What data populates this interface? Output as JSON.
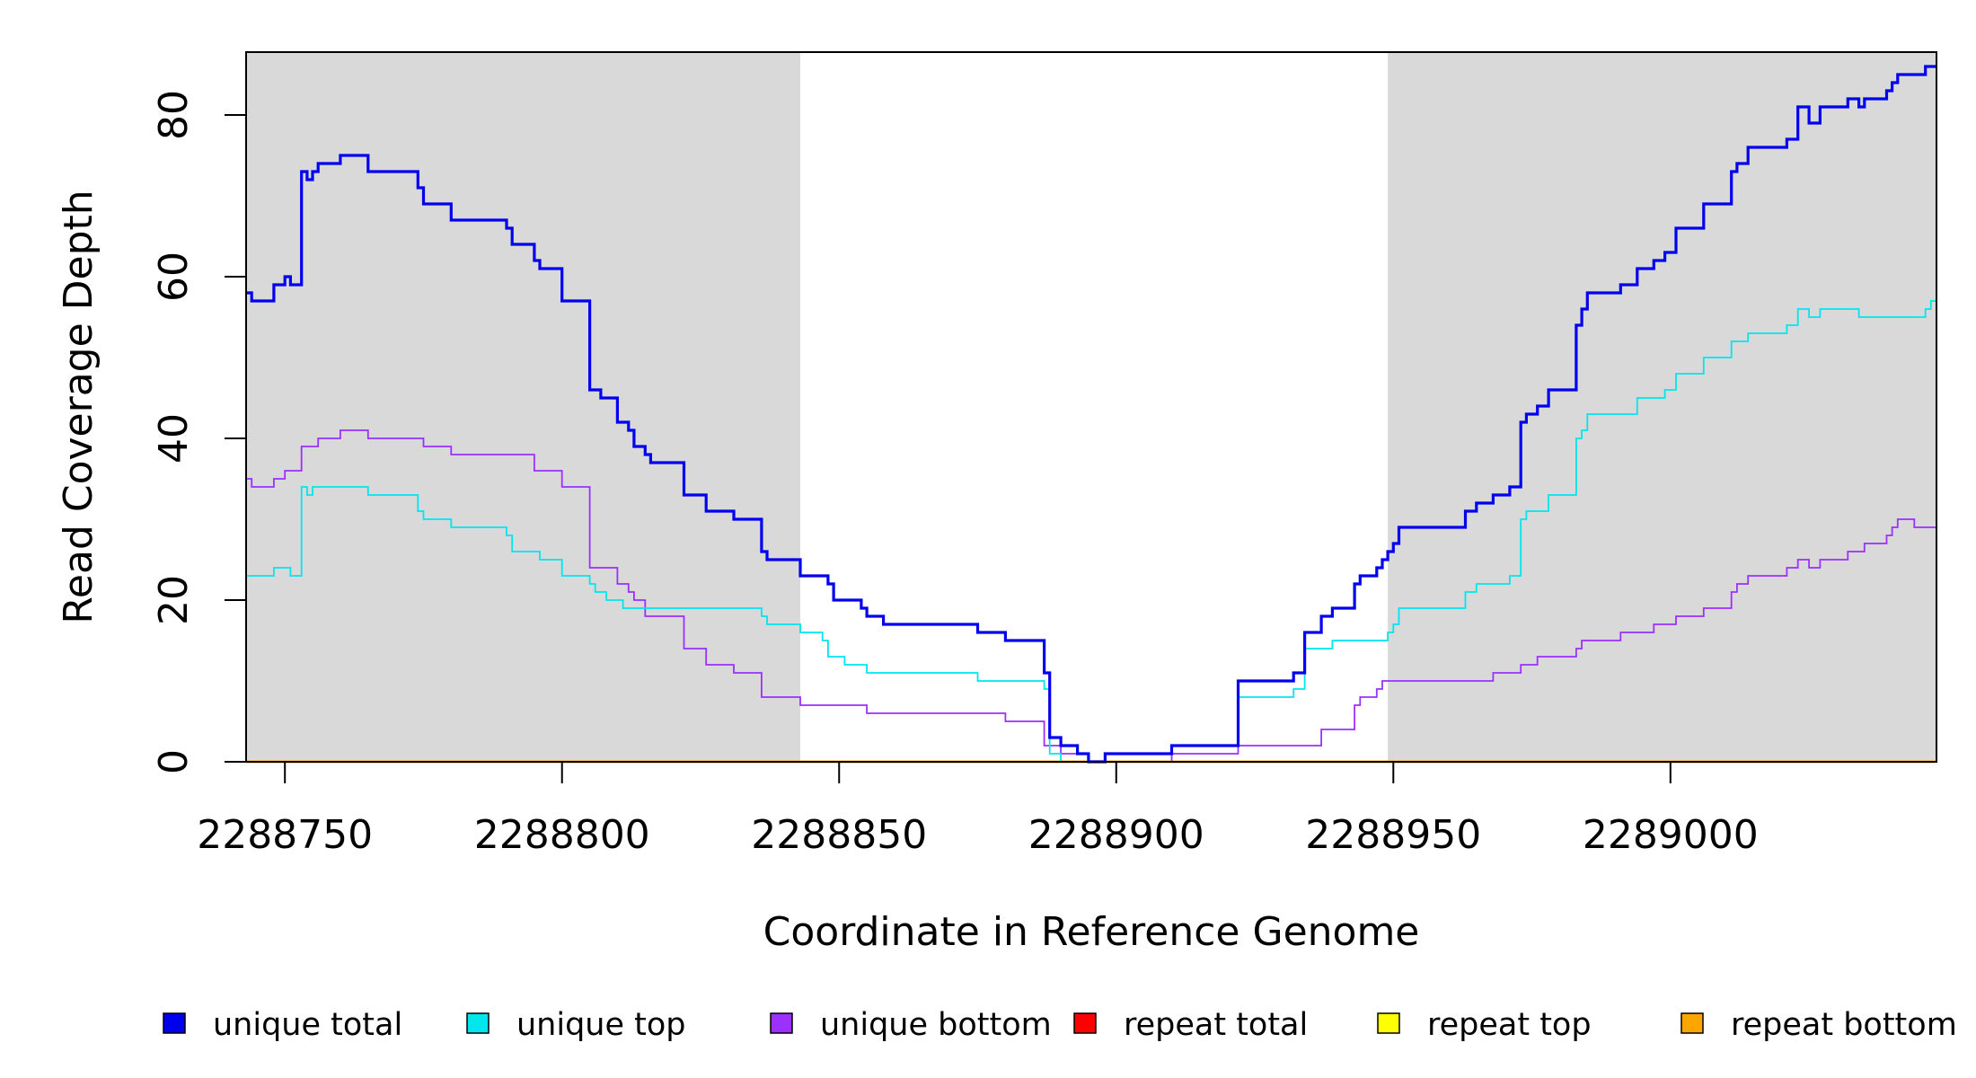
{
  "chart_data": {
    "type": "line",
    "title": "",
    "xlabel": "Coordinate in Reference Genome",
    "ylabel": "Read Coverage Depth",
    "xlim": [
      2288743,
      2289048
    ],
    "ylim": [
      0,
      91
    ],
    "x_ticks": [
      2288750,
      2288800,
      2288850,
      2288900,
      2288950,
      2289000
    ],
    "x_tick_labels": [
      "2288750",
      "2288800",
      "2288850",
      "2288900",
      "2288950",
      "2289000"
    ],
    "y_ticks": [
      0,
      20,
      40,
      60,
      80
    ],
    "y_tick_labels": [
      "0",
      "20",
      "40",
      "60",
      "80"
    ],
    "shaded_regions": [
      [
        2288743,
        2288843
      ],
      [
        2288949,
        2289048
      ]
    ],
    "shade_color": "#d9d9d9",
    "grid": false,
    "legend_position": "bottom",
    "series": [
      {
        "name": "unique total",
        "color": "#0000ee",
        "points": [
          [
            2288743,
            58
          ],
          [
            2288744,
            57
          ],
          [
            2288748,
            59
          ],
          [
            2288750,
            60
          ],
          [
            2288751,
            59
          ],
          [
            2288753,
            73
          ],
          [
            2288754,
            72
          ],
          [
            2288755,
            73
          ],
          [
            2288756,
            74
          ],
          [
            2288760,
            75
          ],
          [
            2288765,
            73
          ],
          [
            2288774,
            71
          ],
          [
            2288775,
            69
          ],
          [
            2288780,
            67
          ],
          [
            2288790,
            66
          ],
          [
            2288791,
            64
          ],
          [
            2288795,
            62
          ],
          [
            2288796,
            61
          ],
          [
            2288800,
            57
          ],
          [
            2288805,
            46
          ],
          [
            2288807,
            45
          ],
          [
            2288810,
            42
          ],
          [
            2288812,
            41
          ],
          [
            2288813,
            39
          ],
          [
            2288815,
            38
          ],
          [
            2288816,
            37
          ],
          [
            2288822,
            33
          ],
          [
            2288826,
            31
          ],
          [
            2288831,
            30
          ],
          [
            2288836,
            26
          ],
          [
            2288837,
            25
          ],
          [
            2288843,
            23
          ],
          [
            2288848,
            22
          ],
          [
            2288849,
            20
          ],
          [
            2288854,
            19
          ],
          [
            2288855,
            18
          ],
          [
            2288858,
            17
          ],
          [
            2288875,
            16
          ],
          [
            2288880,
            15
          ],
          [
            2288887,
            11
          ],
          [
            2288888,
            3
          ],
          [
            2288890,
            2
          ],
          [
            2288893,
            1
          ],
          [
            2288895,
            0
          ],
          [
            2288898,
            1
          ],
          [
            2288910,
            2
          ],
          [
            2288922,
            10
          ],
          [
            2288932,
            11
          ],
          [
            2288934,
            16
          ],
          [
            2288937,
            18
          ],
          [
            2288939,
            19
          ],
          [
            2288943,
            22
          ],
          [
            2288944,
            23
          ],
          [
            2288947,
            24
          ],
          [
            2288948,
            25
          ],
          [
            2288949,
            26
          ],
          [
            2288950,
            27
          ],
          [
            2288951,
            29
          ],
          [
            2288963,
            31
          ],
          [
            2288965,
            32
          ],
          [
            2288968,
            33
          ],
          [
            2288971,
            34
          ],
          [
            2288973,
            42
          ],
          [
            2288974,
            43
          ],
          [
            2288976,
            44
          ],
          [
            2288978,
            46
          ],
          [
            2288983,
            54
          ],
          [
            2288984,
            56
          ],
          [
            2288985,
            58
          ],
          [
            2288991,
            59
          ],
          [
            2288994,
            61
          ],
          [
            2288997,
            62
          ],
          [
            2288999,
            63
          ],
          [
            2289001,
            66
          ],
          [
            2289006,
            69
          ],
          [
            2289011,
            73
          ],
          [
            2289012,
            74
          ],
          [
            2289014,
            76
          ],
          [
            2289021,
            77
          ],
          [
            2289023,
            81
          ],
          [
            2289025,
            79
          ],
          [
            2289027,
            81
          ],
          [
            2289032,
            82
          ],
          [
            2289034,
            81
          ],
          [
            2289035,
            82
          ],
          [
            2289039,
            83
          ],
          [
            2289040,
            84
          ],
          [
            2289041,
            85
          ],
          [
            2289046,
            86
          ]
        ]
      },
      {
        "name": "unique top",
        "color": "#00e5ee",
        "points": [
          [
            2288743,
            23
          ],
          [
            2288748,
            24
          ],
          [
            2288751,
            23
          ],
          [
            2288753,
            34
          ],
          [
            2288754,
            33
          ],
          [
            2288755,
            34
          ],
          [
            2288765,
            33
          ],
          [
            2288774,
            31
          ],
          [
            2288775,
            30
          ],
          [
            2288780,
            29
          ],
          [
            2288790,
            28
          ],
          [
            2288791,
            26
          ],
          [
            2288796,
            25
          ],
          [
            2288800,
            23
          ],
          [
            2288805,
            22
          ],
          [
            2288806,
            21
          ],
          [
            2288808,
            20
          ],
          [
            2288811,
            19
          ],
          [
            2288836,
            18
          ],
          [
            2288837,
            17
          ],
          [
            2288843,
            16
          ],
          [
            2288847,
            15
          ],
          [
            2288848,
            13
          ],
          [
            2288851,
            12
          ],
          [
            2288855,
            11
          ],
          [
            2288875,
            10
          ],
          [
            2288887,
            9
          ],
          [
            2288888,
            1
          ],
          [
            2288890,
            0
          ],
          [
            2288898,
            1
          ],
          [
            2288910,
            2
          ],
          [
            2288922,
            8
          ],
          [
            2288932,
            9
          ],
          [
            2288934,
            14
          ],
          [
            2288939,
            15
          ],
          [
            2288949,
            16
          ],
          [
            2288950,
            17
          ],
          [
            2288951,
            19
          ],
          [
            2288963,
            21
          ],
          [
            2288965,
            22
          ],
          [
            2288971,
            23
          ],
          [
            2288973,
            30
          ],
          [
            2288974,
            31
          ],
          [
            2288978,
            33
          ],
          [
            2288983,
            40
          ],
          [
            2288984,
            41
          ],
          [
            2288985,
            43
          ],
          [
            2288994,
            45
          ],
          [
            2288999,
            46
          ],
          [
            2289001,
            48
          ],
          [
            2289006,
            50
          ],
          [
            2289011,
            52
          ],
          [
            2289014,
            53
          ],
          [
            2289021,
            54
          ],
          [
            2289023,
            56
          ],
          [
            2289025,
            55
          ],
          [
            2289027,
            56
          ],
          [
            2289034,
            55
          ],
          [
            2289046,
            56
          ],
          [
            2289047,
            57
          ]
        ]
      },
      {
        "name": "unique bottom",
        "color": "#9b30ff",
        "points": [
          [
            2288743,
            35
          ],
          [
            2288744,
            34
          ],
          [
            2288748,
            35
          ],
          [
            2288750,
            36
          ],
          [
            2288753,
            39
          ],
          [
            2288756,
            40
          ],
          [
            2288760,
            41
          ],
          [
            2288765,
            40
          ],
          [
            2288775,
            39
          ],
          [
            2288780,
            38
          ],
          [
            2288795,
            36
          ],
          [
            2288800,
            34
          ],
          [
            2288805,
            24
          ],
          [
            2288810,
            22
          ],
          [
            2288812,
            21
          ],
          [
            2288813,
            20
          ],
          [
            2288815,
            18
          ],
          [
            2288822,
            14
          ],
          [
            2288826,
            12
          ],
          [
            2288831,
            11
          ],
          [
            2288836,
            8
          ],
          [
            2288843,
            7
          ],
          [
            2288855,
            6
          ],
          [
            2288880,
            5
          ],
          [
            2288887,
            2
          ],
          [
            2288890,
            1
          ],
          [
            2288895,
            0
          ],
          [
            2288910,
            1
          ],
          [
            2288922,
            2
          ],
          [
            2288937,
            4
          ],
          [
            2288943,
            7
          ],
          [
            2288944,
            8
          ],
          [
            2288947,
            9
          ],
          [
            2288948,
            10
          ],
          [
            2288963,
            10
          ],
          [
            2288968,
            11
          ],
          [
            2288973,
            12
          ],
          [
            2288976,
            13
          ],
          [
            2288983,
            14
          ],
          [
            2288984,
            15
          ],
          [
            2288991,
            16
          ],
          [
            2288997,
            17
          ],
          [
            2289001,
            18
          ],
          [
            2289006,
            19
          ],
          [
            2289011,
            21
          ],
          [
            2289012,
            22
          ],
          [
            2289014,
            23
          ],
          [
            2289021,
            24
          ],
          [
            2289023,
            25
          ],
          [
            2289025,
            24
          ],
          [
            2289027,
            25
          ],
          [
            2289032,
            26
          ],
          [
            2289035,
            27
          ],
          [
            2289039,
            28
          ],
          [
            2289040,
            29
          ],
          [
            2289041,
            30
          ],
          [
            2289044,
            29
          ]
        ]
      },
      {
        "name": "repeat total",
        "color": "#ff0000",
        "points": [
          [
            2288743,
            0
          ],
          [
            2289048,
            0
          ]
        ]
      },
      {
        "name": "repeat top",
        "color": "#ffff00",
        "points": [
          [
            2288743,
            0
          ],
          [
            2289048,
            0
          ]
        ]
      },
      {
        "name": "repeat bottom",
        "color": "#ffa500",
        "points": [
          [
            2288743,
            0
          ],
          [
            2289048,
            0
          ]
        ]
      }
    ]
  }
}
